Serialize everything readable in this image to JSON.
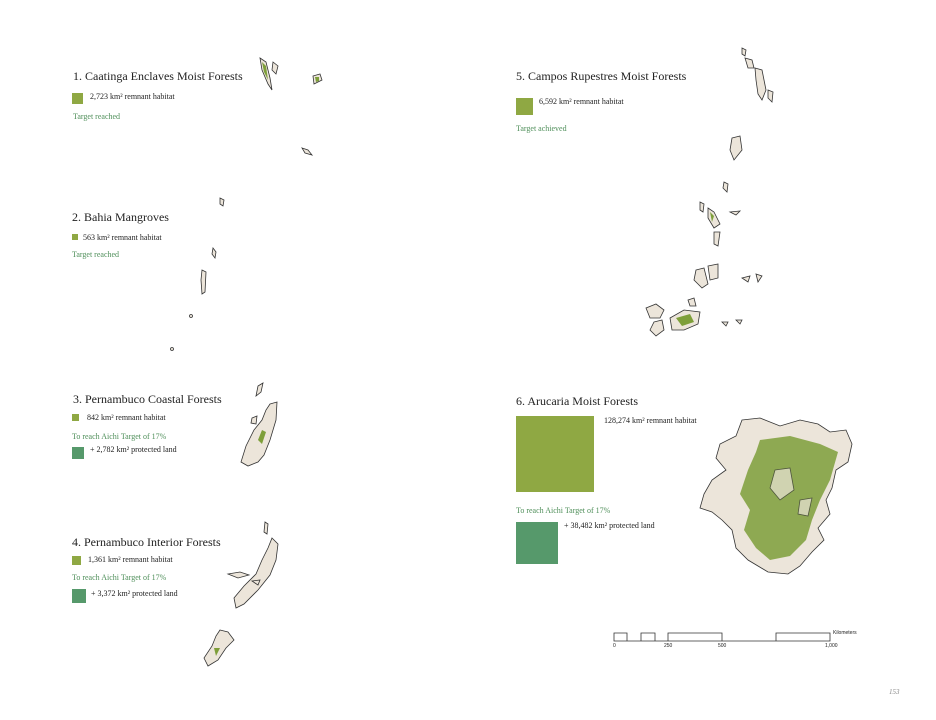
{
  "sections": [
    {
      "title": "1. Caatinga Enclaves Moist Forests",
      "remnant": "2,723 km² remnant habitat",
      "status": "Target reached"
    },
    {
      "title": "2. Bahia Mangroves",
      "remnant": "563 km² remnant habitat",
      "status": "Target reached"
    },
    {
      "title": "3. Pernambuco Coastal Forests",
      "remnant": "842 km² remnant habitat",
      "status": "To reach Aichi Target of 17%",
      "protected": "+ 2,782 km² protected land"
    },
    {
      "title": "4. Pernambuco Interior Forests",
      "remnant": "1,361 km² remnant habitat",
      "status": "To reach Aichi Target of 17%",
      "protected": "+ 3,372 km² protected land"
    },
    {
      "title": "5. Campos Rupestres Moist Forests",
      "remnant": "6,592 km² remnant habitat",
      "status": "Target achieved"
    },
    {
      "title": "6. Arucaria Moist Forests",
      "remnant": "128,274 km² remnant habitat",
      "status": "To reach Aichi Target of 17%",
      "protected": "+ 38,482 km² protected land"
    }
  ],
  "scale": {
    "unit": "Kilometers",
    "ticks": [
      "0",
      "250",
      "500",
      "1,000"
    ]
  },
  "page_number": "153"
}
